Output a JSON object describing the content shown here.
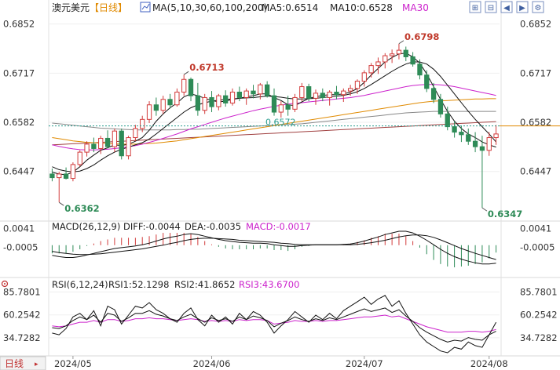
{
  "header": {
    "instrument": "澳元美元",
    "period": "【日线】",
    "ma_params": "MA(5,10,30,60,100,200)",
    "ma5_label": "MA5:0.6514",
    "ma10_label": "MA10:0.6528",
    "ma30_label": "MA30"
  },
  "toolbar": [
    {
      "name": "zoom-in-icon",
      "glyph": "⊞"
    },
    {
      "name": "zoom-out-icon",
      "glyph": "⊟"
    },
    {
      "name": "scroll-left-icon",
      "glyph": "◀"
    },
    {
      "name": "scroll-right-icon",
      "glyph": "▶"
    },
    {
      "name": "settings-icon",
      "glyph": "⚙"
    }
  ],
  "macd": {
    "label": "MACD(26,12,9)",
    "diff": "DIFF:-0.0044",
    "dea": "DEA:-0.0035",
    "macd": "MACD:-0.0017"
  },
  "rsi": {
    "label": "RSI(6,12,24)",
    "rsi1": "RSI1:52.1298",
    "rsi2": "RSI2:41.8652",
    "rsi3": "RSI3:43.6700"
  },
  "footer": {
    "period_tab": "日线"
  },
  "colors": {
    "up": "#d23b3b",
    "down": "#2e8b57",
    "ma5": "#111111",
    "ma10": "#111111",
    "ma30": "#cc22cc",
    "ma60": "#e08a00",
    "ma100": "#888888",
    "ma200": "#a04040",
    "rsi1": "#111111",
    "rsi2": "#111111",
    "rsi3": "#cc22cc",
    "ref_line": "#2a9d8f"
  },
  "chart_data": {
    "type": "candlestick",
    "price_axis": {
      "ticks": [
        "0.6852",
        "0.6717",
        "0.6582",
        "0.6447"
      ],
      "range": [
        0.6315,
        0.6875
      ]
    },
    "date_axis": [
      "2024/05",
      "2024/06",
      "2024/07",
      "2024/08"
    ],
    "annotations": {
      "high1": {
        "label": "0.6713",
        "value": 0.6713
      },
      "high2": {
        "label": "0.6798",
        "value": 0.6798
      },
      "low1": {
        "label": "0.6362",
        "value": 0.6362
      },
      "low2": {
        "label": "0.6347",
        "value": 0.6347
      },
      "ref": {
        "label": "0.6572",
        "value": 0.6572
      }
    },
    "candles": [
      [
        0.644,
        0.6455,
        0.642,
        0.643
      ],
      [
        0.643,
        0.6446,
        0.6362,
        0.644
      ],
      [
        0.644,
        0.6458,
        0.6425,
        0.6428
      ],
      [
        0.6428,
        0.6472,
        0.642,
        0.6466
      ],
      [
        0.6466,
        0.6505,
        0.646,
        0.65
      ],
      [
        0.65,
        0.653,
        0.6488,
        0.6522
      ],
      [
        0.6522,
        0.654,
        0.65,
        0.651
      ],
      [
        0.651,
        0.6545,
        0.6495,
        0.6538
      ],
      [
        0.6538,
        0.656,
        0.651,
        0.6515
      ],
      [
        0.6515,
        0.6565,
        0.65,
        0.6558
      ],
      [
        0.6558,
        0.6565,
        0.648,
        0.649
      ],
      [
        0.649,
        0.6545,
        0.648,
        0.654
      ],
      [
        0.654,
        0.6575,
        0.653,
        0.6565
      ],
      [
        0.6565,
        0.66,
        0.6555,
        0.659
      ],
      [
        0.659,
        0.664,
        0.658,
        0.663
      ],
      [
        0.663,
        0.665,
        0.66,
        0.6615
      ],
      [
        0.6615,
        0.6655,
        0.6605,
        0.6645
      ],
      [
        0.6645,
        0.666,
        0.662,
        0.663
      ],
      [
        0.663,
        0.6675,
        0.6625,
        0.6665
      ],
      [
        0.6665,
        0.6713,
        0.6655,
        0.67
      ],
      [
        0.67,
        0.6705,
        0.664,
        0.6655
      ],
      [
        0.6655,
        0.669,
        0.66,
        0.6615
      ],
      [
        0.6615,
        0.666,
        0.6605,
        0.665
      ],
      [
        0.665,
        0.6668,
        0.661,
        0.6625
      ],
      [
        0.6625,
        0.666,
        0.6615,
        0.6655
      ],
      [
        0.6655,
        0.667,
        0.6625,
        0.6635
      ],
      [
        0.6635,
        0.6675,
        0.6628,
        0.6665
      ],
      [
        0.6665,
        0.668,
        0.664,
        0.665
      ],
      [
        0.665,
        0.6675,
        0.663,
        0.6668
      ],
      [
        0.6668,
        0.6685,
        0.6648,
        0.666
      ],
      [
        0.666,
        0.669,
        0.6645,
        0.6685
      ],
      [
        0.6685,
        0.6695,
        0.665,
        0.6655
      ],
      [
        0.6655,
        0.6675,
        0.66,
        0.661
      ],
      [
        0.661,
        0.664,
        0.6595,
        0.663
      ],
      [
        0.663,
        0.6655,
        0.66,
        0.6618
      ],
      [
        0.6618,
        0.666,
        0.661,
        0.665
      ],
      [
        0.665,
        0.669,
        0.664,
        0.668
      ],
      [
        0.668,
        0.6688,
        0.664,
        0.6648
      ],
      [
        0.6648,
        0.6672,
        0.663,
        0.6662
      ],
      [
        0.6662,
        0.6675,
        0.664,
        0.665
      ],
      [
        0.665,
        0.667,
        0.6628,
        0.6665
      ],
      [
        0.6665,
        0.6682,
        0.6645,
        0.6658
      ],
      [
        0.6658,
        0.6675,
        0.6638,
        0.6668
      ],
      [
        0.6668,
        0.6685,
        0.6655,
        0.6675
      ],
      [
        0.6675,
        0.67,
        0.666,
        0.6695
      ],
      [
        0.6695,
        0.6725,
        0.668,
        0.6718
      ],
      [
        0.6718,
        0.6745,
        0.6705,
        0.6738
      ],
      [
        0.6738,
        0.676,
        0.6715,
        0.6748
      ],
      [
        0.6748,
        0.6772,
        0.673,
        0.6765
      ],
      [
        0.6765,
        0.6782,
        0.6745,
        0.677
      ],
      [
        0.677,
        0.6798,
        0.6755,
        0.678
      ],
      [
        0.678,
        0.679,
        0.675,
        0.6762
      ],
      [
        0.6762,
        0.6775,
        0.6735,
        0.6742
      ],
      [
        0.6742,
        0.6755,
        0.67,
        0.6712
      ],
      [
        0.6712,
        0.6725,
        0.6665,
        0.6675
      ],
      [
        0.6675,
        0.669,
        0.6635,
        0.6645
      ],
      [
        0.6645,
        0.666,
        0.6595,
        0.6605
      ],
      [
        0.6605,
        0.6625,
        0.656,
        0.657
      ],
      [
        0.657,
        0.6585,
        0.654,
        0.6555
      ],
      [
        0.6555,
        0.6572,
        0.6528,
        0.6548
      ],
      [
        0.6548,
        0.6565,
        0.652,
        0.653
      ],
      [
        0.653,
        0.6555,
        0.65,
        0.6515
      ],
      [
        0.6515,
        0.6545,
        0.6347,
        0.6505
      ],
      [
        0.6505,
        0.6555,
        0.649,
        0.654
      ],
      [
        0.654,
        0.6575,
        0.652,
        0.655
      ]
    ],
    "ma5": [
      0.6445,
      0.644,
      0.6438,
      0.6445,
      0.646,
      0.6478,
      0.6492,
      0.6505,
      0.6512,
      0.652,
      0.6518,
      0.6522,
      0.653,
      0.654,
      0.656,
      0.6585,
      0.6605,
      0.6622,
      0.6635,
      0.6652,
      0.666,
      0.6655,
      0.6648,
      0.6642,
      0.6638,
      0.664,
      0.6645,
      0.6648,
      0.6652,
      0.6655,
      0.666,
      0.666,
      0.665,
      0.6642,
      0.663,
      0.6628,
      0.6638,
      0.6648,
      0.6652,
      0.6656,
      0.6658,
      0.6658,
      0.666,
      0.6665,
      0.6675,
      0.6692,
      0.6712,
      0.673,
      0.6748,
      0.676,
      0.677,
      0.6772,
      0.6762,
      0.6745,
      0.6715,
      0.668,
      0.6645,
      0.6612,
      0.6585,
      0.6565,
      0.655,
      0.654,
      0.6528,
      0.652,
      0.6514
    ],
    "ma10": [
      0.646,
      0.6452,
      0.6448,
      0.6446,
      0.6448,
      0.6455,
      0.6465,
      0.6478,
      0.649,
      0.65,
      0.6508,
      0.6514,
      0.652,
      0.6526,
      0.6536,
      0.655,
      0.6565,
      0.658,
      0.6595,
      0.661,
      0.6622,
      0.663,
      0.6636,
      0.664,
      0.6643,
      0.6645,
      0.6646,
      0.6648,
      0.6649,
      0.665,
      0.6652,
      0.6654,
      0.6653,
      0.6651,
      0.6648,
      0.6646,
      0.6646,
      0.6647,
      0.6648,
      0.665,
      0.6652,
      0.6654,
      0.6656,
      0.666,
      0.6666,
      0.6675,
      0.6686,
      0.6698,
      0.671,
      0.6722,
      0.6733,
      0.6742,
      0.6748,
      0.6748,
      0.6742,
      0.6728,
      0.6708,
      0.6684,
      0.666,
      0.6636,
      0.6612,
      0.659,
      0.657,
      0.655,
      0.6528
    ],
    "ma30": [
      0.652,
      0.6516,
      0.6512,
      0.6509,
      0.6507,
      0.6506,
      0.6506,
      0.6507,
      0.6508,
      0.651,
      0.6512,
      0.6515,
      0.6518,
      0.6522,
      0.6527,
      0.6532,
      0.6538,
      0.6544,
      0.655,
      0.6557,
      0.6564,
      0.657,
      0.6576,
      0.6582,
      0.6588,
      0.6594,
      0.6599,
      0.6604,
      0.6609,
      0.6614,
      0.6618,
      0.6622,
      0.6626,
      0.6629,
      0.6632,
      0.6634,
      0.6636,
      0.6638,
      0.664,
      0.6642,
      0.6644,
      0.6646,
      0.6648,
      0.665,
      0.6653,
      0.6656,
      0.666,
      0.6664,
      0.6668,
      0.6672,
      0.6676,
      0.668,
      0.6683,
      0.6685,
      0.6686,
      0.6686,
      0.6685,
      0.6683,
      0.668,
      0.6676,
      0.6672,
      0.6668,
      0.6664,
      0.666,
      0.6656
    ],
    "ma60": [
      0.654,
      0.6537,
      0.6534,
      0.6531,
      0.6529,
      0.6527,
      0.6526,
      0.6525,
      0.6524,
      0.6523,
      0.6522,
      0.6522,
      0.6522,
      0.6523,
      0.6524,
      0.6525,
      0.6527,
      0.6529,
      0.6531,
      0.6534,
      0.6537,
      0.654,
      0.6543,
      0.6546,
      0.6549,
      0.6552,
      0.6555,
      0.6558,
      0.6561,
      0.6564,
      0.6567,
      0.657,
      0.6573,
      0.6576,
      0.6579,
      0.6582,
      0.6585,
      0.6588,
      0.6591,
      0.6594,
      0.6597,
      0.66,
      0.6603,
      0.6606,
      0.6609,
      0.6612,
      0.6615,
      0.6618,
      0.6621,
      0.6624,
      0.6627,
      0.663,
      0.6633,
      0.6636,
      0.6638,
      0.664,
      0.6641,
      0.6642,
      0.6643,
      0.6644,
      0.6645,
      0.6646,
      0.6646,
      0.6647,
      0.6647
    ],
    "ma100": [
      0.658,
      0.6578,
      0.6576,
      0.6574,
      0.6572,
      0.657,
      0.6568,
      0.6566,
      0.6565,
      0.6564,
      0.6563,
      0.6562,
      0.6561,
      0.6561,
      0.6561,
      0.6561,
      0.6561,
      0.6561,
      0.6562,
      0.6562,
      0.6563,
      0.6563,
      0.6564,
      0.6565,
      0.6566,
      0.6567,
      0.6568,
      0.6569,
      0.657,
      0.6571,
      0.6572,
      0.6573,
      0.6574,
      0.6575,
      0.6576,
      0.6577,
      0.6578,
      0.658,
      0.6582,
      0.6584,
      0.6586,
      0.6588,
      0.659,
      0.6592,
      0.6594,
      0.6596,
      0.6598,
      0.66,
      0.6602,
      0.6604,
      0.6606,
      0.6608,
      0.6609,
      0.661,
      0.6611,
      0.6612,
      0.6612,
      0.6612,
      0.6612,
      0.6612,
      0.6612,
      0.6612,
      0.6612,
      0.6612,
      0.6612
    ],
    "ma200": [
      0.652,
      0.6521,
      0.6522,
      0.6523,
      0.6524,
      0.6525,
      0.6526,
      0.6527,
      0.6528,
      0.6529,
      0.653,
      0.6531,
      0.6532,
      0.6533,
      0.6534,
      0.6535,
      0.6536,
      0.6537,
      0.6538,
      0.6539,
      0.654,
      0.6541,
      0.6542,
      0.6543,
      0.6544,
      0.6545,
      0.6546,
      0.6547,
      0.6548,
      0.6549,
      0.655,
      0.6551,
      0.6552,
      0.6553,
      0.6554,
      0.6555,
      0.6556,
      0.6557,
      0.6558,
      0.6559,
      0.656,
      0.6561,
      0.6562,
      0.6563,
      0.6564,
      0.6565,
      0.6566,
      0.6567,
      0.6568,
      0.6569,
      0.657,
      0.6571,
      0.6572,
      0.6573,
      0.6574,
      0.6575,
      0.6576,
      0.6577,
      0.6578,
      0.6579,
      0.658,
      0.6581,
      0.6582,
      0.6583,
      0.6584
    ],
    "macd_axis": {
      "ticks": [
        "0.0041",
        "-0.0005"
      ],
      "range": [
        -0.0075,
        0.0055
      ]
    },
    "macd_diff": [
      -0.0025,
      -0.0028,
      -0.003,
      -0.003,
      -0.0028,
      -0.0024,
      -0.002,
      -0.0016,
      -0.0012,
      -0.0008,
      -0.0006,
      -0.0004,
      -0.0002,
      0.0001,
      0.0005,
      0.001,
      0.0015,
      0.0019,
      0.0022,
      0.0026,
      0.0028,
      0.0026,
      0.0022,
      0.0018,
      0.0014,
      0.0011,
      0.0009,
      0.0007,
      0.0006,
      0.0005,
      0.0005,
      0.0004,
      0.0001,
      -0.0001,
      -0.0003,
      -0.0003,
      -0.0001,
      0.0,
      0.0001,
      0.0001,
      0.0001,
      0.0001,
      0.0002,
      0.0003,
      0.0006,
      0.001,
      0.0015,
      0.002,
      0.0026,
      0.003,
      0.0034,
      0.0034,
      0.003,
      0.0022,
      0.0012,
      0.0001,
      -0.001,
      -0.002,
      -0.0028,
      -0.0034,
      -0.0039,
      -0.0043,
      -0.0046,
      -0.0046,
      -0.0044
    ],
    "macd_dea": [
      -0.0015,
      -0.0018,
      -0.002,
      -0.0022,
      -0.0023,
      -0.0023,
      -0.0022,
      -0.0021,
      -0.0019,
      -0.0017,
      -0.0015,
      -0.0013,
      -0.0011,
      -0.0009,
      -0.0006,
      -0.0003,
      0.0,
      0.0004,
      0.0007,
      0.0011,
      0.0014,
      0.0016,
      0.0017,
      0.0017,
      0.0016,
      0.0015,
      0.0014,
      0.0012,
      0.0011,
      0.001,
      0.0009,
      0.0008,
      0.0007,
      0.0005,
      0.0004,
      0.0002,
      0.0001,
      0.0001,
      0.0001,
      0.0001,
      0.0001,
      0.0001,
      0.0001,
      0.0001,
      0.0002,
      0.0004,
      0.0006,
      0.0009,
      0.0012,
      0.0016,
      0.002,
      0.0023,
      0.0025,
      0.0025,
      0.0023,
      0.0019,
      0.0013,
      0.0006,
      -0.0001,
      -0.0008,
      -0.0014,
      -0.002,
      -0.0025,
      -0.003,
      -0.0035
    ],
    "rsi_axis": {
      "ticks": [
        "85.7801",
        "60.2542",
        "34.7282"
      ],
      "range": [
        18,
        95
      ]
    },
    "rsi1": [
      40,
      38,
      45,
      58,
      62,
      55,
      65,
      48,
      70,
      66,
      50,
      60,
      70,
      68,
      74,
      66,
      62,
      56,
      52,
      62,
      68,
      55,
      48,
      60,
      52,
      58,
      50,
      62,
      55,
      64,
      60,
      52,
      40,
      48,
      55,
      64,
      58,
      52,
      60,
      55,
      62,
      56,
      65,
      70,
      75,
      80,
      72,
      78,
      82,
      70,
      76,
      62,
      50,
      38,
      30,
      25,
      20,
      18,
      24,
      22,
      30,
      26,
      24,
      38,
      52
    ],
    "rsi2": [
      46,
      45,
      48,
      54,
      58,
      55,
      60,
      52,
      62,
      60,
      53,
      57,
      62,
      62,
      65,
      61,
      59,
      56,
      54,
      58,
      61,
      56,
      52,
      57,
      54,
      56,
      53,
      58,
      55,
      59,
      57,
      54,
      47,
      51,
      54,
      58,
      55,
      53,
      56,
      54,
      57,
      55,
      58,
      61,
      64,
      67,
      64,
      66,
      68,
      63,
      66,
      59,
      53,
      46,
      41,
      37,
      33,
      30,
      32,
      31,
      35,
      33,
      32,
      38,
      42
    ],
    "rsi3": [
      48,
      47,
      48,
      50,
      52,
      52,
      54,
      52,
      55,
      55,
      53,
      54,
      56,
      56,
      57,
      56,
      56,
      55,
      54,
      55,
      56,
      55,
      53,
      54,
      53,
      54,
      53,
      55,
      54,
      55,
      55,
      54,
      50,
      51,
      52,
      54,
      53,
      53,
      54,
      53,
      54,
      54,
      55,
      56,
      57,
      58,
      58,
      59,
      60,
      58,
      59,
      56,
      53,
      50,
      47,
      45,
      43,
      41,
      41,
      41,
      42,
      42,
      41,
      42,
      44
    ]
  }
}
